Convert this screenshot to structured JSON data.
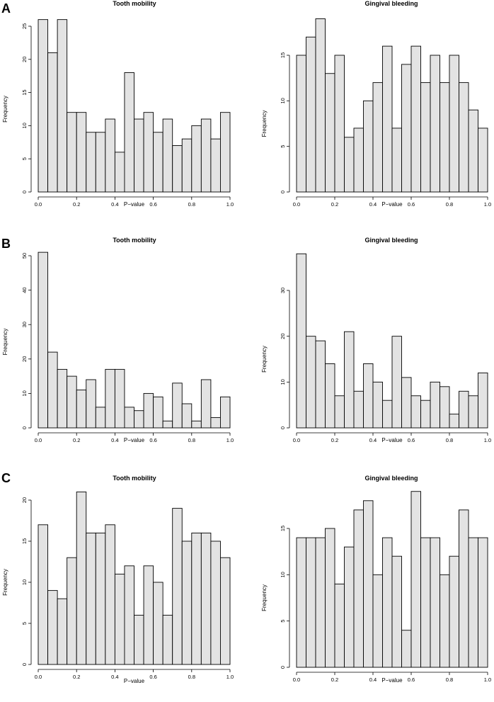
{
  "panels": [
    {
      "letter": "A"
    },
    {
      "letter": "B"
    },
    {
      "letter": "C"
    }
  ],
  "chart_data": [
    {
      "type": "bar",
      "panel": "A",
      "title": "Tooth mobility",
      "xlabel": "P−value",
      "ylabel": "Frequency",
      "xlim": [
        0,
        1
      ],
      "ylim": [
        0,
        25
      ],
      "xticks": [
        "0.0",
        "0.2",
        "0.4",
        "0.6",
        "0.8",
        "1.0"
      ],
      "yticks": [
        "0",
        "5",
        "10",
        "15",
        "20",
        "25"
      ],
      "bin_width": 0.05,
      "values": [
        26,
        21,
        26,
        12,
        12,
        9,
        9,
        11,
        6,
        18,
        11,
        12,
        9,
        11,
        7,
        8,
        10,
        11,
        8,
        12
      ]
    },
    {
      "type": "bar",
      "panel": "A",
      "title": "Gingival bleeding",
      "xlabel": "P−value",
      "ylabel": "Frequency",
      "xlim": [
        0,
        1
      ],
      "ylim": [
        0,
        15
      ],
      "xticks": [
        "0.0",
        "0.2",
        "0.4",
        "0.6",
        "0.8",
        "1.0"
      ],
      "yticks": [
        "0",
        "5",
        "10",
        "15"
      ],
      "bin_width": 0.05,
      "values": [
        15,
        17,
        19,
        13,
        15,
        6,
        7,
        10,
        12,
        16,
        7,
        14,
        16,
        12,
        15,
        12,
        15,
        12,
        9,
        7
      ]
    },
    {
      "type": "bar",
      "panel": "B",
      "title": "Tooth mobility",
      "xlabel": "P−value",
      "ylabel": "Frequency",
      "xlim": [
        0,
        1
      ],
      "ylim": [
        0,
        50
      ],
      "xticks": [
        "0.0",
        "0.2",
        "0.4",
        "0.6",
        "0.8",
        "1.0"
      ],
      "yticks": [
        "0",
        "10",
        "20",
        "30",
        "40",
        "50"
      ],
      "bin_width": 0.05,
      "values": [
        51,
        22,
        17,
        15,
        11,
        14,
        6,
        17,
        17,
        6,
        5,
        10,
        9,
        2,
        13,
        7,
        2,
        14,
        3,
        9
      ]
    },
    {
      "type": "bar",
      "panel": "B",
      "title": "Gingival bleeding",
      "xlabel": "P−value",
      "ylabel": "Frequency",
      "xlim": [
        0,
        1
      ],
      "ylim": [
        0,
        30
      ],
      "xticks": [
        "0.0",
        "0.2",
        "0.4",
        "0.6",
        "0.8",
        "1.0"
      ],
      "yticks": [
        "0",
        "10",
        "20",
        "30"
      ],
      "bin_width": 0.05,
      "values": [
        38,
        20,
        19,
        14,
        7,
        21,
        8,
        14,
        10,
        6,
        20,
        11,
        7,
        6,
        10,
        9,
        3,
        8,
        7,
        12
      ]
    },
    {
      "type": "bar",
      "panel": "C",
      "title": "Tooth mobility",
      "xlabel": "P−value",
      "ylabel": "Frequency",
      "xlim": [
        0,
        1
      ],
      "ylim": [
        0,
        20
      ],
      "xticks": [
        "0.0",
        "0.2",
        "0.4",
        "0.6",
        "0.8",
        "1.0"
      ],
      "yticks": [
        "0",
        "5",
        "10",
        "15",
        "20"
      ],
      "bin_width": 0.05,
      "values": [
        17,
        9,
        8,
        13,
        21,
        16,
        16,
        17,
        11,
        12,
        6,
        12,
        10,
        6,
        19,
        15,
        16,
        16,
        15,
        13
      ]
    },
    {
      "type": "bar",
      "panel": "C",
      "title": "Gingival bleeding",
      "xlabel": "P−value",
      "ylabel": "Frequency",
      "xlim": [
        0,
        1
      ],
      "ylim": [
        0,
        15
      ],
      "xticks": [
        "0.0",
        "0.2",
        "0.4",
        "0.6",
        "0.8",
        "1.0"
      ],
      "yticks": [
        "0",
        "5",
        "10",
        "15"
      ],
      "bin_width": 0.05,
      "values": [
        14,
        14,
        14,
        15,
        9,
        13,
        17,
        18,
        10,
        14,
        12,
        4,
        19,
        14,
        14,
        10,
        12,
        17,
        14,
        14
      ]
    }
  ]
}
